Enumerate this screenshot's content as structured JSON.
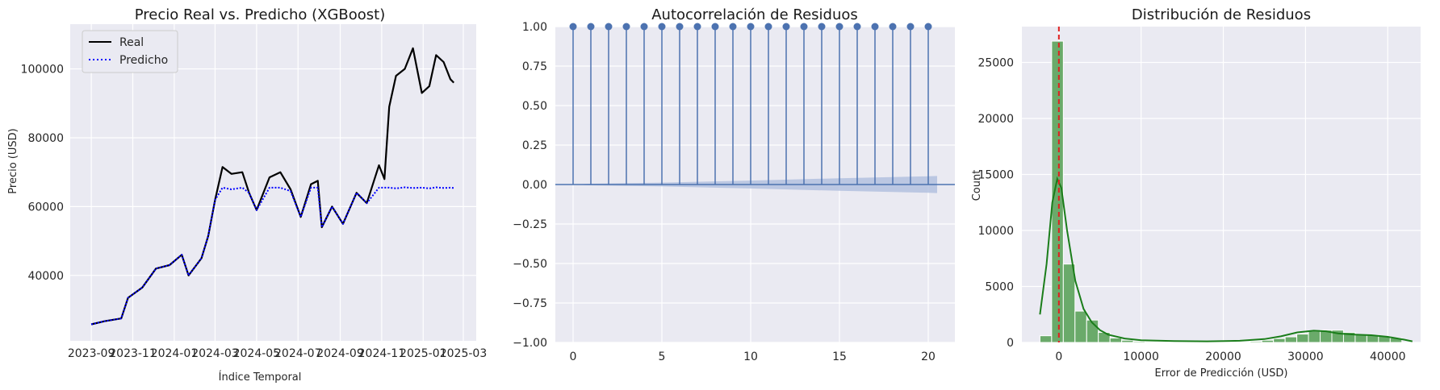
{
  "colors": {
    "plot_bg": "#eaeaf2",
    "grid": "#ffffff",
    "real": "#000000",
    "pred": "#0000ff",
    "acf": "#4c72b0",
    "conf_band": "#b3c1df",
    "hist": "#6aaa6a",
    "kde": "#1a7d1a",
    "zero_line": "#e02020"
  },
  "chart_data": [
    {
      "type": "line",
      "title": "Precio Real vs. Predicho (XGBoost)",
      "xlabel": "Índice Temporal",
      "ylabel": "Precio (USD)",
      "x_ticks": [
        "2023-09",
        "2023-11",
        "2024-01",
        "2024-03",
        "2024-05",
        "2024-07",
        "2024-09",
        "2024-11",
        "2025-01",
        "2025-03"
      ],
      "y_ticks": [
        "40000",
        "60000",
        "80000",
        "100000"
      ],
      "ylim": [
        21000,
        113000
      ],
      "legend": "upper-left",
      "grid": true,
      "series": [
        {
          "name": "Real",
          "style": "solid",
          "points": [
            [
              "2023-09-01",
              25800
            ],
            [
              "2023-09-20",
              26700
            ],
            [
              "2023-10-15",
              27500
            ],
            [
              "2023-10-25",
              33500
            ],
            [
              "2023-11-15",
              36500
            ],
            [
              "2023-12-05",
              42000
            ],
            [
              "2023-12-25",
              43000
            ],
            [
              "2024-01-12",
              46000
            ],
            [
              "2024-01-22",
              40000
            ],
            [
              "2024-02-10",
              45000
            ],
            [
              "2024-02-20",
              51500
            ],
            [
              "2024-03-01",
              62000
            ],
            [
              "2024-03-12",
              71500
            ],
            [
              "2024-03-25",
              69500
            ],
            [
              "2024-04-10",
              70000
            ],
            [
              "2024-04-20",
              64000
            ],
            [
              "2024-05-01",
              59000
            ],
            [
              "2024-05-20",
              68500
            ],
            [
              "2024-06-05",
              70000
            ],
            [
              "2024-06-20",
              65000
            ],
            [
              "2024-07-05",
              57000
            ],
            [
              "2024-07-20",
              66500
            ],
            [
              "2024-07-30",
              67500
            ],
            [
              "2024-08-05",
              54000
            ],
            [
              "2024-08-20",
              60000
            ],
            [
              "2024-09-05",
              55000
            ],
            [
              "2024-09-25",
              64000
            ],
            [
              "2024-10-10",
              61000
            ],
            [
              "2024-10-28",
              72000
            ],
            [
              "2024-11-05",
              68000
            ],
            [
              "2024-11-12",
              89000
            ],
            [
              "2024-11-22",
              98000
            ],
            [
              "2024-12-05",
              100000
            ],
            [
              "2024-12-17",
              106000
            ],
            [
              "2024-12-30",
              93000
            ],
            [
              "2025-01-10",
              95000
            ],
            [
              "2025-01-20",
              104000
            ],
            [
              "2025-01-31",
              102000
            ],
            [
              "2025-02-10",
              97000
            ],
            [
              "2025-02-15",
              96000
            ]
          ]
        },
        {
          "name": "Predicho",
          "style": "dotted",
          "points": [
            [
              "2023-09-01",
              25800
            ],
            [
              "2023-09-20",
              26700
            ],
            [
              "2023-10-15",
              27500
            ],
            [
              "2023-10-25",
              33500
            ],
            [
              "2023-11-15",
              36500
            ],
            [
              "2023-12-05",
              42000
            ],
            [
              "2023-12-25",
              43000
            ],
            [
              "2024-01-12",
              46000
            ],
            [
              "2024-01-22",
              40000
            ],
            [
              "2024-02-10",
              45000
            ],
            [
              "2024-02-20",
              51500
            ],
            [
              "2024-03-01",
              62000
            ],
            [
              "2024-03-12",
              65500
            ],
            [
              "2024-03-25",
              65000
            ],
            [
              "2024-04-10",
              65500
            ],
            [
              "2024-04-20",
              64000
            ],
            [
              "2024-05-01",
              59000
            ],
            [
              "2024-05-20",
              65500
            ],
            [
              "2024-06-05",
              65500
            ],
            [
              "2024-06-20",
              64500
            ],
            [
              "2024-07-05",
              57000
            ],
            [
              "2024-07-20",
              65500
            ],
            [
              "2024-07-30",
              65500
            ],
            [
              "2024-08-05",
              54000
            ],
            [
              "2024-08-20",
              60000
            ],
            [
              "2024-09-05",
              55000
            ],
            [
              "2024-09-25",
              64000
            ],
            [
              "2024-10-10",
              61000
            ],
            [
              "2024-10-28",
              65500
            ],
            [
              "2024-11-05",
              65500
            ],
            [
              "2024-11-12",
              65500
            ],
            [
              "2024-11-22",
              65300
            ],
            [
              "2024-12-05",
              65600
            ],
            [
              "2024-12-17",
              65400
            ],
            [
              "2024-12-30",
              65500
            ],
            [
              "2025-01-10",
              65300
            ],
            [
              "2025-01-20",
              65600
            ],
            [
              "2025-01-31",
              65400
            ],
            [
              "2025-02-10",
              65500
            ],
            [
              "2025-02-15",
              65400
            ]
          ]
        }
      ]
    },
    {
      "type": "stem",
      "title": "Autocorrelación de Residuos",
      "x_ticks": [
        "0",
        "5",
        "10",
        "15",
        "20"
      ],
      "y_ticks": [
        "−1.00",
        "−0.75",
        "−0.50",
        "−0.25",
        "0.00",
        "0.25",
        "0.50",
        "0.75",
        "1.00"
      ],
      "xlim": [
        -1.0,
        21.5
      ],
      "ylim": [
        -1.0,
        1.0
      ],
      "lags": [
        0,
        1,
        2,
        3,
        4,
        5,
        6,
        7,
        8,
        9,
        10,
        11,
        12,
        13,
        14,
        15,
        16,
        17,
        18,
        19,
        20
      ],
      "values": [
        1,
        1,
        1,
        1,
        1,
        1,
        1,
        1,
        1,
        1,
        1,
        1,
        1,
        1,
        1,
        1,
        1,
        1,
        1,
        1,
        1
      ],
      "confidence_band": {
        "x": [
          0,
          1,
          5,
          10,
          15,
          20,
          20.5
        ],
        "upper": [
          0.0,
          0.005,
          0.012,
          0.025,
          0.04,
          0.052,
          0.054
        ],
        "lower": [
          0.0,
          -0.005,
          -0.012,
          -0.025,
          -0.04,
          -0.052,
          -0.054
        ]
      }
    },
    {
      "type": "histogram",
      "title": "Distribución de Residuos",
      "xlabel": "Error de Predicción (USD)",
      "ylabel": "Count",
      "x_ticks": [
        "0",
        "10000",
        "20000",
        "30000",
        "40000"
      ],
      "y_ticks": [
        "0",
        "5000",
        "10000",
        "15000",
        "20000",
        "25000"
      ],
      "xlim": [
        -4500,
        44000
      ],
      "ylim": [
        0,
        28200
      ],
      "bin_width": 1420,
      "bin_start": -2300,
      "counts": [
        600,
        26900,
        7000,
        2800,
        2000,
        900,
        400,
        200,
        100,
        80,
        60,
        40,
        40,
        30,
        30,
        40,
        50,
        60,
        100,
        200,
        350,
        500,
        750,
        1000,
        1100,
        1100,
        900,
        700,
        650,
        550,
        400
      ],
      "kde": [
        [
          -2300,
          2500
        ],
        [
          -1500,
          7000
        ],
        [
          -800,
          12500
        ],
        [
          -200,
          14600
        ],
        [
          300,
          13800
        ],
        [
          1000,
          10000
        ],
        [
          2000,
          5500
        ],
        [
          3000,
          3000
        ],
        [
          4000,
          1800
        ],
        [
          5000,
          1100
        ],
        [
          6000,
          700
        ],
        [
          8000,
          350
        ],
        [
          10000,
          200
        ],
        [
          14000,
          120
        ],
        [
          18000,
          100
        ],
        [
          22000,
          150
        ],
        [
          25000,
          300
        ],
        [
          27000,
          550
        ],
        [
          29000,
          900
        ],
        [
          31000,
          1050
        ],
        [
          32500,
          1000
        ],
        [
          34000,
          800
        ],
        [
          36000,
          700
        ],
        [
          38000,
          650
        ],
        [
          40000,
          500
        ],
        [
          42000,
          250
        ],
        [
          43000,
          100
        ]
      ],
      "zero_line": 0
    }
  ]
}
